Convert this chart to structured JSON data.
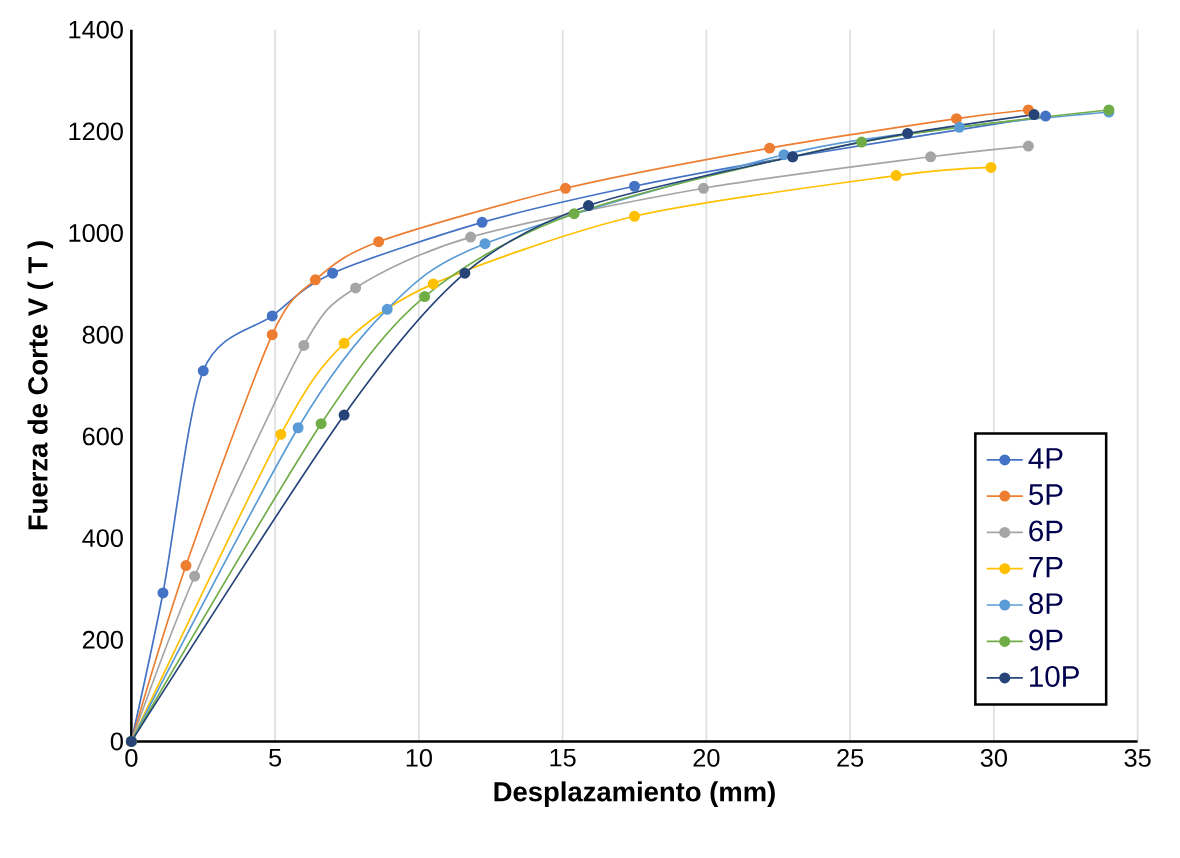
{
  "chart_data": {
    "type": "line",
    "xlabel": "Desplazamiento (mm)",
    "ylabel": "Fuerza de Corte V ( T )",
    "xlim": [
      0,
      35
    ],
    "ylim": [
      0,
      1400
    ],
    "xticks": [
      0,
      5,
      10,
      15,
      20,
      25,
      30,
      35
    ],
    "yticks": [
      0,
      200,
      400,
      600,
      800,
      1000,
      1200,
      1400
    ],
    "grid": "x",
    "legend": "right",
    "marker": "circle",
    "line_style": "solid",
    "series": [
      {
        "name": "4P",
        "color": "#4472c4",
        "x": [
          0,
          1.1,
          2.5,
          4.9,
          7.0,
          12.2,
          17.5,
          23.0,
          31.8
        ],
        "values": [
          0,
          292,
          729,
          837,
          921,
          1021,
          1092,
          1150,
          1230
        ]
      },
      {
        "name": "5P",
        "color": "#ed7d31",
        "x": [
          0,
          1.9,
          4.9,
          6.4,
          8.6,
          15.1,
          22.2,
          28.7,
          31.2
        ],
        "values": [
          0,
          346,
          800,
          908,
          983,
          1088,
          1167,
          1225,
          1242
        ]
      },
      {
        "name": "6P",
        "color": "#a5a5a5",
        "x": [
          0,
          2.2,
          6.0,
          7.8,
          11.8,
          19.9,
          27.8,
          31.2
        ],
        "values": [
          0,
          325,
          779,
          892,
          992,
          1088,
          1150,
          1171
        ]
      },
      {
        "name": "7P",
        "color": "#ffc000",
        "x": [
          0,
          5.2,
          7.4,
          10.5,
          17.5,
          26.6,
          29.9
        ],
        "values": [
          0,
          604,
          783,
          900,
          1033,
          1113,
          1129
        ]
      },
      {
        "name": "8P",
        "color": "#5b9bd5",
        "x": [
          0,
          5.8,
          8.9,
          12.3,
          22.7,
          28.8,
          34.0
        ],
        "values": [
          0,
          617,
          850,
          979,
          1154,
          1208,
          1238
        ]
      },
      {
        "name": "9P",
        "color": "#70ad47",
        "x": [
          0,
          6.6,
          10.2,
          15.4,
          25.4,
          34.0
        ],
        "values": [
          0,
          625,
          875,
          1038,
          1179,
          1242
        ]
      },
      {
        "name": "10P",
        "color": "#264478",
        "x": [
          0,
          7.4,
          11.6,
          15.9,
          23.0,
          27.0,
          31.4
        ],
        "values": [
          0,
          642,
          921,
          1054,
          1150,
          1196,
          1233
        ]
      }
    ]
  }
}
